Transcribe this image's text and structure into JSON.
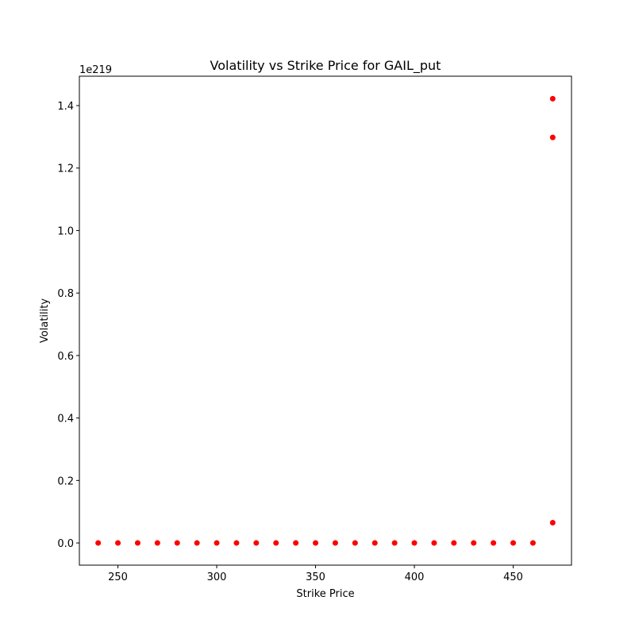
{
  "chart_data": {
    "type": "scatter",
    "title": "Volatility vs Strike Price for GAIL_put",
    "xlabel": "Strike Price",
    "ylabel": "Volatility",
    "y_offset_text": "1e219",
    "xlim": [
      230.5,
      479.5
    ],
    "ylim": [
      -0.071,
      1.494
    ],
    "x_ticks": [
      250,
      300,
      350,
      400,
      450
    ],
    "x_tick_labels": [
      "250",
      "300",
      "350",
      "400",
      "450"
    ],
    "y_ticks": [
      0.0,
      0.2,
      0.4,
      0.6,
      0.8,
      1.0,
      1.2,
      1.4
    ],
    "y_tick_labels": [
      "0.0",
      "0.2",
      "0.4",
      "0.6",
      "0.8",
      "1.0",
      "1.2",
      "1.4"
    ],
    "grid": false,
    "marker_color": "#ff0000",
    "points": [
      {
        "x": 240,
        "y": 0
      },
      {
        "x": 250,
        "y": 0
      },
      {
        "x": 260,
        "y": 0
      },
      {
        "x": 270,
        "y": 0
      },
      {
        "x": 280,
        "y": 0
      },
      {
        "x": 290,
        "y": 0
      },
      {
        "x": 300,
        "y": 0
      },
      {
        "x": 310,
        "y": 0
      },
      {
        "x": 320,
        "y": 0
      },
      {
        "x": 330,
        "y": 0
      },
      {
        "x": 340,
        "y": 0
      },
      {
        "x": 350,
        "y": 0
      },
      {
        "x": 360,
        "y": 0
      },
      {
        "x": 370,
        "y": 0
      },
      {
        "x": 380,
        "y": 0
      },
      {
        "x": 390,
        "y": 0
      },
      {
        "x": 400,
        "y": 0
      },
      {
        "x": 410,
        "y": 0
      },
      {
        "x": 420,
        "y": 0
      },
      {
        "x": 430,
        "y": 0
      },
      {
        "x": 440,
        "y": 0
      },
      {
        "x": 450,
        "y": 0
      },
      {
        "x": 460,
        "y": 0
      },
      {
        "x": 470,
        "y": 0.065
      },
      {
        "x": 470,
        "y": 1.298
      },
      {
        "x": 470,
        "y": 1.422
      }
    ]
  }
}
